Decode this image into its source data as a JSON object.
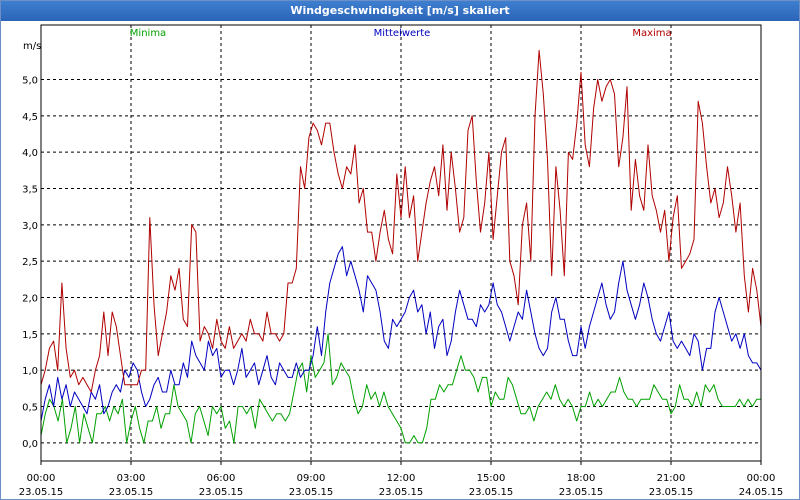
{
  "window": {
    "title": "Windgeschwindigkeit [m/s] skaliert"
  },
  "chart_data": {
    "type": "line",
    "title": "Windgeschwindigkeit [m/s] skaliert",
    "ylabel": "m/s",
    "xlabel": "",
    "ylim": [
      -0.25,
      5.75
    ],
    "xlim": [
      0,
      24
    ],
    "grid": true,
    "legend": "top",
    "y_ticks": [
      "0,0",
      "0,5",
      "1,0",
      "1,5",
      "2,0",
      "2,5",
      "3,0",
      "3,5",
      "4,0",
      "4,5",
      "5,0"
    ],
    "x_ticks": [
      {
        "time": "00:00",
        "date": "23.05.15"
      },
      {
        "time": "03:00",
        "date": "23.05.15"
      },
      {
        "time": "06:00",
        "date": "23.05.15"
      },
      {
        "time": "09:00",
        "date": "23.05.15"
      },
      {
        "time": "12:00",
        "date": "23.05.15"
      },
      {
        "time": "15:00",
        "date": "23.05.15"
      },
      {
        "time": "18:00",
        "date": "23.05.15"
      },
      {
        "time": "21:00",
        "date": "23.05.15"
      },
      {
        "time": "00:00",
        "date": "24.05.15"
      }
    ],
    "series": [
      {
        "name": "Minima",
        "color": "#00a000",
        "values": [
          0.1,
          0.4,
          0.6,
          0.5,
          0.3,
          0.6,
          0.0,
          0.2,
          0.5,
          0.0,
          0.4,
          0.2,
          0.0,
          0.4,
          0.4,
          0.5,
          0.3,
          0.5,
          0.4,
          0.6,
          0.0,
          0.3,
          0.5,
          0.2,
          0.0,
          0.3,
          0.3,
          0.5,
          0.2,
          0.4,
          0.4,
          0.8,
          0.5,
          0.4,
          0.3,
          0.0,
          0.4,
          0.5,
          0.3,
          0.1,
          0.5,
          0.4,
          0.5,
          0.2,
          0.3,
          0.0,
          0.5,
          0.5,
          0.4,
          0.5,
          0.2,
          0.6,
          0.5,
          0.4,
          0.3,
          0.4,
          0.4,
          0.3,
          0.4,
          0.7,
          1.0,
          1.1,
          0.7,
          1.2,
          0.9,
          1.0,
          1.1,
          1.5,
          0.8,
          0.9,
          1.1,
          1.0,
          0.9,
          0.6,
          0.4,
          0.5,
          0.8,
          0.6,
          0.7,
          0.5,
          0.7,
          0.5,
          0.4,
          0.3,
          0.2,
          0.0,
          0.0,
          0.1,
          0.0,
          0.0,
          0.2,
          0.6,
          0.6,
          0.8,
          0.7,
          0.8,
          0.8,
          1.0,
          1.2,
          1.0,
          1.0,
          0.9,
          0.7,
          0.9,
          0.9,
          0.5,
          0.7,
          0.6,
          0.6,
          0.9,
          0.8,
          0.6,
          0.4,
          0.4,
          0.5,
          0.3,
          0.5,
          0.6,
          0.7,
          0.6,
          0.8,
          0.6,
          0.5,
          0.6,
          0.5,
          0.3,
          0.5,
          0.5,
          0.7,
          0.5,
          0.6,
          0.5,
          0.6,
          0.7,
          0.7,
          0.9,
          0.7,
          0.6,
          0.6,
          0.5,
          0.6,
          0.6,
          0.6,
          0.8,
          0.7,
          0.6,
          0.6,
          0.4,
          0.5,
          0.8,
          0.6,
          0.6,
          0.5,
          0.7,
          0.5,
          0.8,
          0.7,
          0.8,
          0.6,
          0.5,
          0.5,
          0.5,
          0.5,
          0.6,
          0.5,
          0.6,
          0.5,
          0.6,
          0.6
        ]
      },
      {
        "name": "Mittelwerte",
        "color": "#0000c0",
        "values": [
          0.3,
          0.6,
          0.8,
          0.5,
          0.9,
          0.6,
          0.8,
          0.5,
          0.7,
          0.6,
          0.5,
          0.4,
          0.7,
          0.6,
          0.8,
          0.4,
          0.5,
          0.7,
          0.8,
          0.7,
          1.0,
          0.9,
          1.1,
          1.0,
          0.7,
          0.5,
          0.6,
          0.8,
          0.9,
          0.7,
          0.7,
          1.0,
          0.8,
          0.8,
          1.1,
          0.9,
          1.4,
          1.2,
          1.1,
          1.0,
          1.4,
          1.2,
          1.3,
          0.9,
          1.0,
          1.0,
          0.8,
          1.0,
          1.3,
          0.9,
          1.0,
          1.1,
          0.8,
          1.0,
          1.2,
          0.9,
          0.8,
          1.1,
          1.0,
          0.9,
          0.9,
          1.1,
          0.9,
          1.0,
          1.0,
          1.2,
          1.6,
          1.2,
          1.8,
          2.2,
          2.4,
          2.6,
          2.7,
          2.3,
          2.5,
          2.3,
          2.1,
          1.8,
          2.3,
          2.2,
          2.1,
          1.8,
          1.4,
          1.3,
          1.7,
          1.6,
          1.7,
          1.8,
          2.0,
          2.1,
          1.8,
          1.9,
          1.5,
          1.8,
          1.3,
          1.6,
          1.7,
          1.2,
          1.4,
          1.8,
          2.1,
          1.9,
          1.7,
          1.7,
          1.6,
          1.9,
          1.8,
          1.9,
          2.2,
          1.9,
          1.8,
          1.6,
          1.4,
          1.6,
          1.8,
          1.7,
          2.1,
          1.8,
          1.5,
          1.3,
          1.2,
          1.3,
          1.8,
          2.0,
          1.7,
          1.7,
          1.4,
          1.2,
          1.2,
          1.6,
          1.3,
          1.6,
          1.8,
          2.0,
          2.2,
          1.9,
          1.7,
          1.8,
          2.2,
          2.5,
          2.1,
          1.9,
          1.7,
          1.9,
          2.2,
          2.0,
          1.7,
          1.5,
          1.4,
          1.6,
          1.8,
          1.4,
          1.3,
          1.4,
          1.3,
          1.2,
          1.5,
          1.4,
          1.0,
          1.3,
          1.3,
          1.8,
          2.0,
          1.8,
          1.6,
          1.4,
          1.5,
          1.3,
          1.5,
          1.2,
          1.1,
          1.1,
          1.0
        ]
      },
      {
        "name": "Maxima",
        "color": "#b00000",
        "values": [
          0.8,
          1.0,
          1.3,
          1.4,
          1.0,
          2.2,
          1.3,
          0.9,
          1.0,
          0.8,
          0.9,
          0.8,
          0.7,
          1.0,
          1.2,
          1.8,
          1.2,
          1.8,
          1.6,
          1.2,
          0.8,
          0.8,
          0.8,
          0.8,
          1.0,
          1.0,
          3.1,
          1.9,
          1.2,
          1.5,
          1.8,
          2.3,
          2.1,
          2.4,
          1.7,
          1.6,
          3.0,
          2.9,
          1.4,
          1.6,
          1.5,
          1.3,
          1.7,
          1.4,
          1.3,
          1.6,
          1.3,
          1.4,
          1.5,
          1.4,
          1.7,
          1.5,
          1.5,
          1.4,
          1.8,
          1.5,
          1.5,
          1.4,
          1.5,
          2.2,
          2.2,
          2.4,
          3.8,
          3.5,
          4.2,
          4.4,
          4.3,
          4.1,
          4.4,
          4.4,
          4.0,
          3.7,
          3.5,
          3.8,
          3.7,
          4.1,
          3.3,
          3.5,
          2.9,
          2.9,
          2.5,
          2.9,
          3.2,
          2.8,
          2.6,
          3.7,
          3.1,
          3.8,
          3.1,
          3.4,
          2.5,
          2.9,
          3.3,
          3.6,
          3.8,
          3.4,
          4.1,
          3.2,
          4.0,
          3.5,
          2.9,
          3.1,
          4.3,
          4.5,
          3.6,
          2.9,
          3.3,
          4.0,
          2.8,
          3.4,
          4.0,
          4.2,
          2.5,
          2.3,
          1.9,
          3.0,
          3.3,
          2.5,
          4.5,
          5.4,
          4.8,
          3.9,
          2.3,
          3.8,
          3.2,
          2.3,
          4.0,
          3.9,
          4.4,
          5.1,
          4.1,
          3.8,
          4.6,
          5.0,
          4.7,
          4.9,
          5.0,
          4.8,
          3.8,
          4.2,
          4.9,
          3.2,
          3.9,
          3.4,
          3.2,
          4.1,
          3.4,
          3.2,
          2.9,
          3.2,
          2.5,
          3.1,
          3.4,
          2.4,
          2.5,
          2.6,
          2.8,
          4.7,
          4.4,
          3.8,
          3.3,
          3.5,
          3.1,
          3.3,
          3.8,
          3.4,
          2.9,
          3.3,
          2.3,
          1.8,
          2.4,
          2.1,
          1.6
        ]
      }
    ]
  }
}
